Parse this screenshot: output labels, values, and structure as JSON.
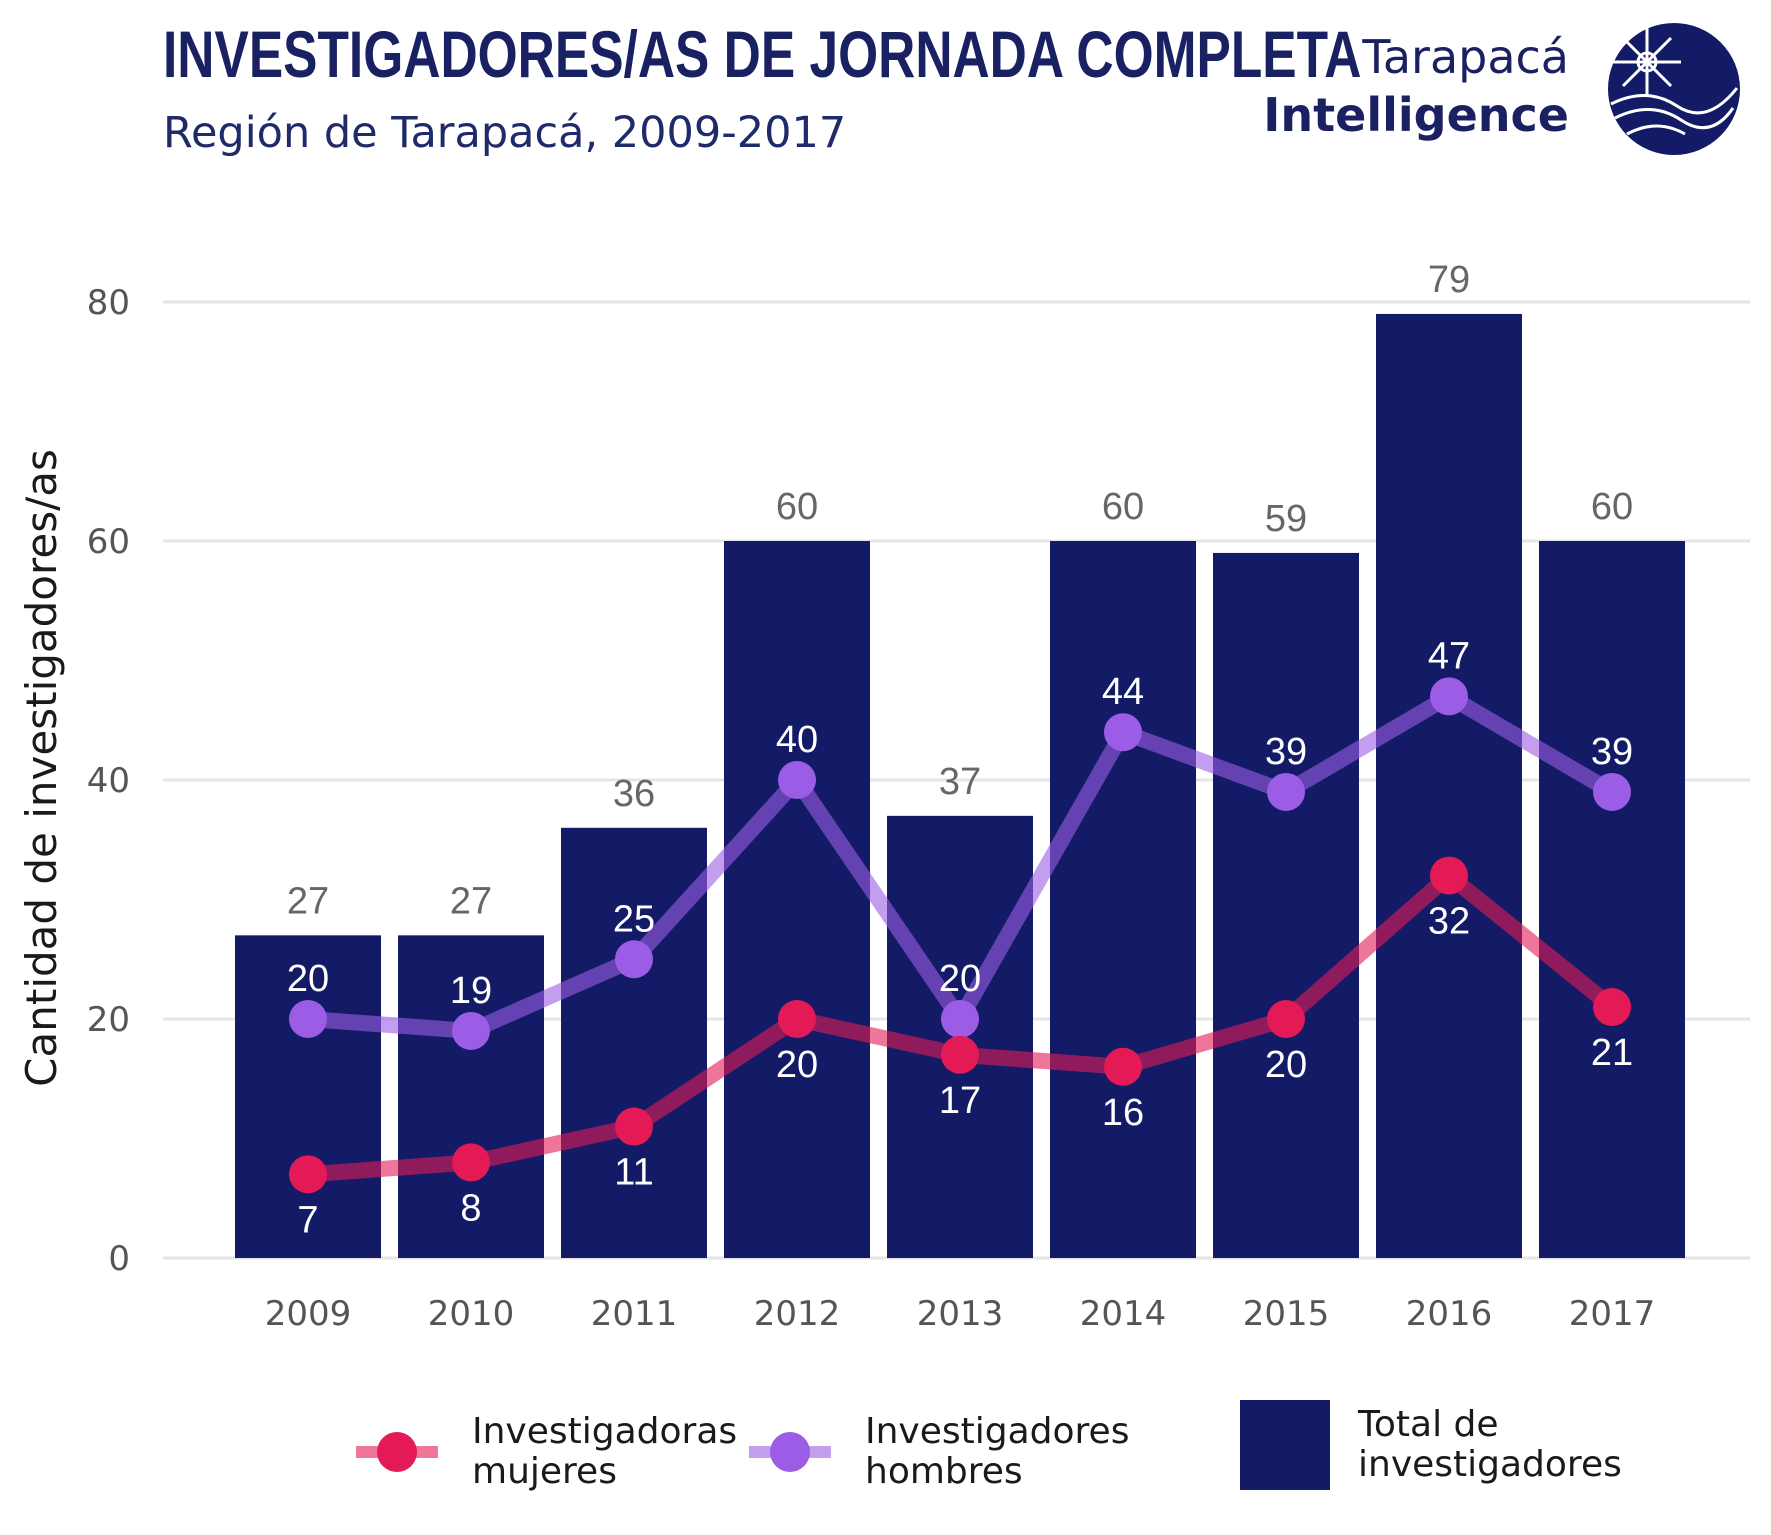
{
  "header": {
    "title": "INVESTIGADORES/AS DE JORNADA COMPLETA",
    "subtitle": "Región de Tarapacá, 2009-2017"
  },
  "brand": {
    "line1": "Tarapacá",
    "line2": "Intelligence",
    "icon": "globe-compass-logo-icon"
  },
  "colors": {
    "total": "#131b66",
    "mujeres": "#e31a55",
    "hombres": "#9b5de5",
    "grid": "#e5e5e5",
    "axis_text": "#555555",
    "total_label": "#666666",
    "inner_label": "#ffffff"
  },
  "chart_data": {
    "type": "bar",
    "categories": [
      "2009",
      "2010",
      "2011",
      "2012",
      "2013",
      "2014",
      "2015",
      "2016",
      "2017"
    ],
    "ylabel": "Cantidad de investigadores/as",
    "ylim": [
      0,
      80
    ],
    "yticks": [
      0,
      20,
      40,
      60,
      80
    ],
    "grid": true,
    "legend_position": "bottom",
    "series": [
      {
        "name": "Total de investigadores",
        "type": "bar",
        "values": [
          27,
          27,
          36,
          60,
          37,
          60,
          59,
          79,
          60
        ]
      },
      {
        "name": "Investigadores hombres",
        "type": "line",
        "values": [
          20,
          19,
          25,
          40,
          20,
          44,
          39,
          47,
          39
        ]
      },
      {
        "name": "Investigadoras mujeres",
        "type": "line",
        "values": [
          7,
          8,
          11,
          20,
          17,
          16,
          20,
          32,
          21
        ]
      }
    ]
  },
  "legend": {
    "mujeres": "Investigadoras\nmujeres",
    "hombres": "Investigadores\nhombres",
    "total": "Total de\ninvestigadores"
  }
}
